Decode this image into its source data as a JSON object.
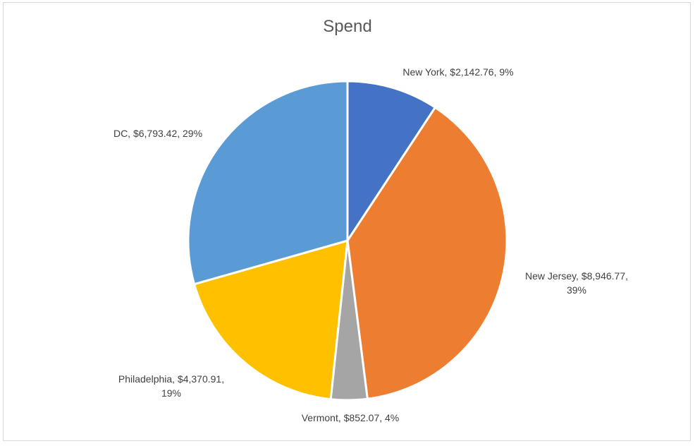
{
  "chart_data": {
    "type": "pie",
    "title": "Spend",
    "categories": [
      "New York",
      "New Jersey",
      "Vermont",
      "Philadelphia",
      "DC"
    ],
    "values": [
      2142.76,
      8946.77,
      852.07,
      4370.91,
      6793.42
    ],
    "percentages": [
      9,
      39,
      4,
      19,
      29
    ],
    "colors": [
      "#4472C4",
      "#ED7D31",
      "#A5A5A5",
      "#FFC000",
      "#5B9BD5"
    ],
    "data_labels": [
      [
        "New York, $2,142.76, 9%"
      ],
      [
        "New Jersey, $8,946.77,",
        "39%"
      ],
      [
        "Vermont, $852.07, 4%"
      ],
      [
        "Philadelphia, $4,370.91,",
        "19%"
      ],
      [
        "DC, $6,793.42, 29%"
      ]
    ],
    "legend": "none"
  }
}
